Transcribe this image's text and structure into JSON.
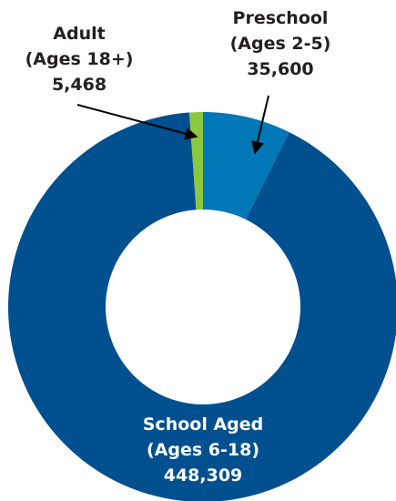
{
  "chart_data": {
    "type": "pie",
    "style": "donut",
    "slices": [
      {
        "label_lines": [
          "School Aged",
          "(Ages 6-18)",
          "448,309"
        ],
        "value": 448309,
        "color": "#00508F",
        "label_color": "#FFFFFF",
        "label_position": "inside-bottom"
      },
      {
        "label_lines": [
          "Adult",
          "(Ages 18+)",
          "5,468"
        ],
        "value": 5468,
        "color": "#8DC63F",
        "label_color": "#231F20",
        "label_position": "outside-top-left"
      },
      {
        "label_lines": [
          "Preschool",
          "(Ages 2-5)",
          "35,600"
        ],
        "value": 35600,
        "color": "#0077B6",
        "label_color": "#231F20",
        "label_position": "outside-top-right"
      }
    ],
    "legend": "none"
  }
}
